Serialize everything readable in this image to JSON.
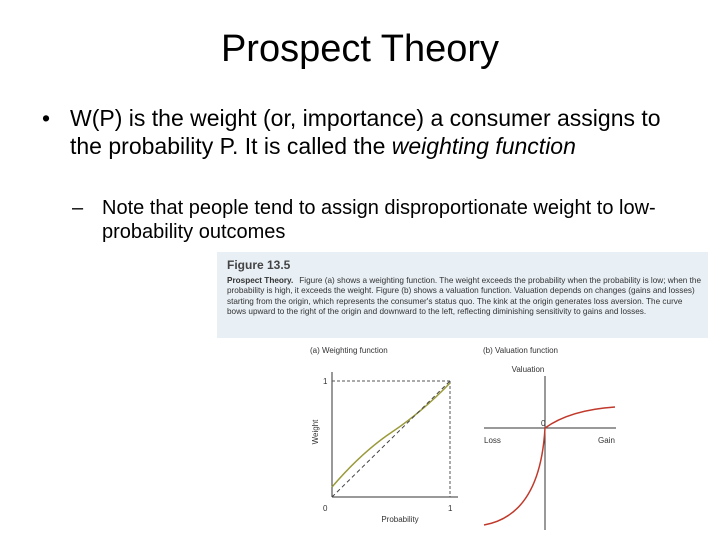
{
  "title": "Prospect Theory",
  "bullets": [
    {
      "text": "W(P) is the weight (or, importance) a consumer assigns to the probability P. It is called the ",
      "emphasis": "weighting function",
      "subbullets": [
        "Note that people tend to assign disproportionate weight to low-probability outcomes"
      ]
    }
  ],
  "figure": {
    "label": "Figure 13.5",
    "caption_title": "Prospect Theory.",
    "caption": "Figure (a) shows a weighting function. The weight exceeds the probability when the probability is low; when the probability is high, it exceeds the weight. Figure (b) shows a valuation function. Valuation depends on changes (gains and losses) starting from the origin, which represents the consumer's status quo. The kink at the origin generates loss aversion. The curve bows upward to the right of the origin and downward to the left, reflecting diminishing sensitivity to gains and losses.",
    "panel_a": {
      "title": "(a) Weighting function",
      "y_label": "Weight",
      "x_label": "Probability",
      "y_tick": "1",
      "origin": "0",
      "x_tick": "1"
    },
    "panel_b": {
      "title": "(b) Valuation function",
      "y_label": "Valuation",
      "origin": "0",
      "left_label": "Loss",
      "right_label": "Gain"
    }
  }
}
